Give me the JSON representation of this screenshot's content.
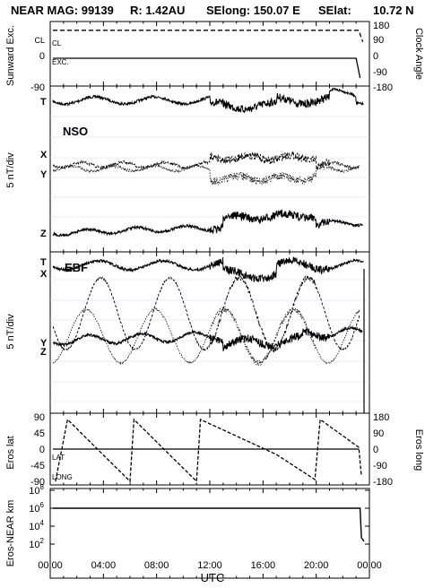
{
  "header": {
    "mission": "NEAR MAG: 99139",
    "range_label": "R: 1.42AU",
    "selong_label": "SElong: 150.07 E",
    "selat_label": "SElat:",
    "selat_value": "10.72 N"
  },
  "x_axis": {
    "label": "UTC",
    "tick_labels": [
      "00:00",
      "04:00",
      "08:00",
      "12:00",
      "16:00",
      "20:00",
      "00:00"
    ]
  },
  "chart_data": [
    {
      "id": "sunward-clock",
      "type": "line",
      "ylabel_left": "Sunward Exc.",
      "ylabel_right": "Clock Angle",
      "left_ticks": [
        "CL",
        "0",
        "-90"
      ],
      "right_ticks": [
        "180",
        "90",
        "0",
        "-90",
        "-180"
      ],
      "annotations": [
        "CL",
        "EXC."
      ],
      "xlim_hours": [
        0,
        24
      ],
      "series": [
        {
          "label": "CL",
          "style": "dashed",
          "x": [
            0.2,
            23.2,
            23.5
          ],
          "y": [
            85,
            85,
            50
          ]
        },
        {
          "label": "EXC.",
          "style": "solid",
          "x": [
            0.2,
            23.0,
            23.3
          ],
          "y": [
            0,
            0,
            -60
          ]
        }
      ]
    },
    {
      "id": "nso",
      "type": "line",
      "title": "NSO",
      "ylabel": "5 nT/div",
      "component_labels": [
        "T",
        "X",
        "Y",
        "Z"
      ],
      "xlim_hours": [
        0,
        24
      ]
    },
    {
      "id": "ebf",
      "type": "line",
      "title": "EBF",
      "ylabel": "5 nT/div",
      "component_labels": [
        "T",
        "X",
        "Y",
        "Z"
      ],
      "xlim_hours": [
        0,
        24
      ]
    },
    {
      "id": "eros-latlong",
      "type": "line",
      "ylabel_left": "Eros lat",
      "ylabel_right": "Eros long",
      "left_ticks": [
        "90",
        "45",
        "0",
        "-45",
        "-90"
      ],
      "right_ticks": [
        "180",
        "90",
        "0",
        "-90",
        "-180"
      ],
      "annotations": [
        "LAT",
        "LONG"
      ],
      "xlim_hours": [
        0,
        24
      ],
      "series": [
        {
          "label": "LAT",
          "style": "solid",
          "x": [
            0.2,
            23.2
          ],
          "y": [
            0,
            0
          ]
        },
        {
          "label": "LONG",
          "style": "dashed",
          "x": [
            0.4,
            1.3,
            6.0,
            6.3,
            11.0,
            11.3,
            17.0,
            19.9,
            20.3,
            23.2,
            23.4
          ],
          "y": [
            -180,
            165,
            -180,
            165,
            -180,
            165,
            -30,
            -170,
            165,
            10,
            -150
          ]
        }
      ]
    },
    {
      "id": "eros-distance",
      "type": "line",
      "ylabel": "Eros-NEAR km",
      "y_scale": "log",
      "tick_labels": [
        "10^8",
        "10^6",
        "10^4",
        "10^2"
      ],
      "xlim_hours": [
        0,
        24
      ],
      "series": [
        {
          "style": "solid",
          "x": [
            0.2,
            23.3,
            23.4,
            23.6
          ],
          "y": [
            1000000,
            1000000,
            500,
            200
          ]
        }
      ]
    }
  ]
}
